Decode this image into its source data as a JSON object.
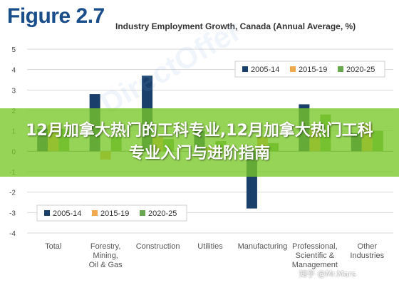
{
  "figure": {
    "label": "Figure 2.7",
    "subtitle": "Industry Employment Growth, Canada (Annual Average, %)"
  },
  "banner": {
    "text": "12月加拿大热门的工科专业,12月加拿大热门工科专业入门与进阶指南"
  },
  "watermark": {
    "text": "知乎 @Mr.Mars",
    "faint_text": "DirectOffer"
  },
  "chart_data": {
    "type": "bar",
    "title": "Industry Employment Growth, Canada (Annual Average, %)",
    "categories": [
      [
        "Total"
      ],
      [
        "Forestry,",
        "Mining,",
        "Oil & Gas"
      ],
      [
        "Construction"
      ],
      [
        "Utilities"
      ],
      [
        "Manufacturing"
      ],
      [
        "Professional,",
        "Scientific &",
        "Management"
      ],
      [
        "Other",
        "Industries"
      ]
    ],
    "series": [
      {
        "name": "2005-14",
        "color": "#1b3f6b",
        "values": [
          1.1,
          2.8,
          3.7,
          1.0,
          -2.8,
          2.3,
          0.9
        ]
      },
      {
        "name": "2015-19",
        "color": "#f0a850",
        "values": [
          1.3,
          -0.4,
          0.7,
          0.2,
          0.7,
          1.1,
          1.3
        ]
      },
      {
        "name": "2020-25",
        "color": "#6aa84f",
        "values": [
          1.1,
          0.7,
          0.6,
          0.5,
          0.4,
          1.8,
          1.0
        ]
      }
    ],
    "ylim": [
      -4,
      5
    ],
    "yticks": [
      5,
      4,
      3,
      2,
      1,
      0,
      -1,
      -2,
      -3,
      -4
    ],
    "grid": true,
    "legend_placement": [
      "top-right",
      "bottom-left"
    ]
  }
}
